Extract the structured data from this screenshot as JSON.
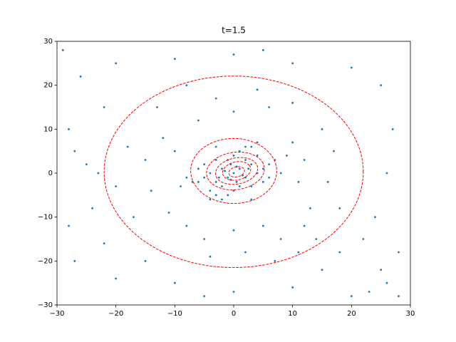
{
  "chart_data": {
    "type": "scatter",
    "title": "t=1.5",
    "x": [
      0,
      1,
      -1,
      2,
      -2,
      3,
      -3,
      1,
      -1,
      4,
      -4,
      0,
      0,
      2,
      -2,
      5,
      -5,
      3,
      -3,
      6,
      -6,
      1,
      -1,
      4,
      -4,
      5,
      -5,
      2,
      -2,
      6,
      -6,
      7,
      -7,
      3,
      -3,
      0.5,
      -0.5,
      1.5,
      -1.5,
      2.5,
      -2.5,
      0.5,
      -0.5,
      8,
      -8,
      4,
      -4,
      9,
      -9,
      3,
      -3,
      10,
      12,
      11,
      13,
      12,
      14,
      11,
      -10,
      -12,
      -15,
      -18,
      -14,
      -11,
      -8,
      -5,
      0,
      5,
      8,
      6,
      0,
      -6,
      -3,
      4,
      10,
      15,
      17,
      16,
      18,
      -17,
      -20,
      -13,
      -8,
      2,
      -4,
      7,
      -25,
      -27,
      -24,
      -22,
      -26,
      -20,
      -10,
      0,
      10,
      20,
      25,
      27,
      26,
      24,
      25,
      23,
      26,
      28,
      20,
      10,
      0,
      -10,
      -20,
      -27,
      -28,
      -28,
      -15,
      15,
      18,
      22,
      -22,
      -23,
      28,
      -29,
      5,
      -5
    ],
    "y": [
      0,
      1,
      -1,
      -1,
      1,
      2,
      -2,
      -3,
      3,
      0,
      0,
      4,
      -4,
      3,
      -3,
      1,
      -1,
      -3,
      3,
      2,
      -2,
      5,
      -5,
      4,
      -4,
      -2,
      2,
      6,
      -6,
      -1,
      1,
      3,
      -2,
      6,
      -5,
      1.5,
      -1.5,
      -0.5,
      0.5,
      1,
      -1,
      -2,
      2,
      0,
      -1,
      7,
      -6,
      4,
      -3,
      -6,
      6,
      7,
      3,
      -2,
      -8,
      -12,
      -15,
      -18,
      5,
      8,
      3,
      6,
      -4,
      -9,
      -12,
      -15,
      -13,
      -12,
      -15,
      15,
      14,
      12,
      17,
      19,
      16,
      10,
      5,
      -2,
      -8,
      -10,
      -3,
      15,
      20,
      -18,
      -19,
      -20,
      2,
      5,
      -8,
      15,
      22,
      25,
      26,
      27,
      25,
      24,
      20,
      10,
      0,
      -10,
      -22,
      -27,
      -25,
      -18,
      -28,
      -26,
      -27,
      -25,
      -24,
      -20,
      -12,
      10,
      -20,
      -22,
      -18,
      -15,
      -16,
      0,
      -28,
      28,
      28,
      -28
    ],
    "color": "#1f77b4",
    "ellipses": [
      {
        "cx": 0,
        "cy": 0.3,
        "rx": 22,
        "ry": 21.8,
        "angle": 0
      },
      {
        "cx": 0,
        "cy": 0.5,
        "rx": 7.3,
        "ry": 7.4,
        "angle": 10
      },
      {
        "cx": 0.3,
        "cy": 0.5,
        "rx": 5,
        "ry": 4.2,
        "angle": 20
      },
      {
        "cx": 0.5,
        "cy": 0.5,
        "rx": 3.7,
        "ry": 2.9,
        "angle": 25
      },
      {
        "cx": 0.5,
        "cy": 0.5,
        "rx": 2.5,
        "ry": 2,
        "angle": 30
      },
      {
        "cx": 0.5,
        "cy": 0.3,
        "rx": 1.4,
        "ry": 1.1,
        "angle": 30
      }
    ],
    "ellipse_color": "red",
    "xlim": [
      -30,
      30
    ],
    "ylim": [
      -30,
      30
    ],
    "xticks": [
      {
        "value": -30,
        "label": "−30"
      },
      {
        "value": -20,
        "label": "−20"
      },
      {
        "value": -10,
        "label": "−10"
      },
      0,
      10,
      20,
      30
    ],
    "yticks": [
      {
        "value": -30,
        "label": "−30"
      },
      {
        "value": -20,
        "label": "−20"
      },
      {
        "value": -10,
        "label": "−10"
      },
      0,
      10,
      20,
      30
    ]
  }
}
